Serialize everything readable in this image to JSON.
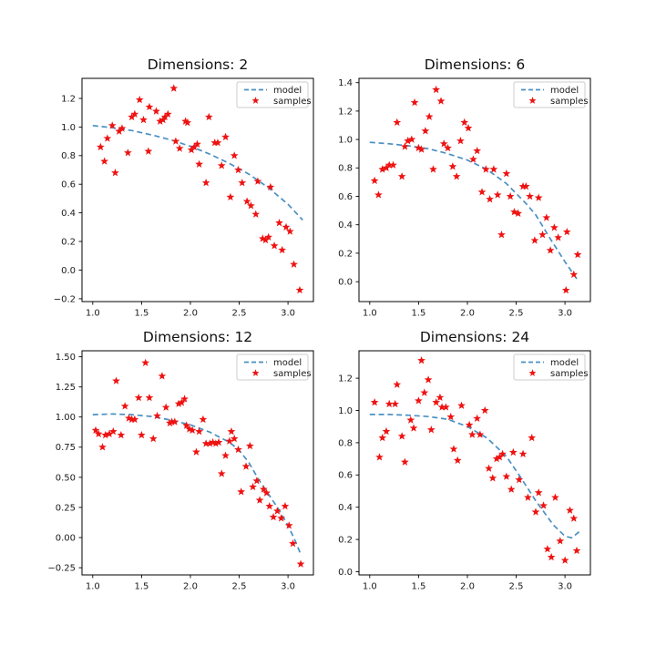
{
  "legend": {
    "model_label": "model",
    "samples_label": "samples"
  },
  "colors": {
    "model": "#4a90c2",
    "samples": "#ee1312",
    "axis": "#000000",
    "background": "#ffffff"
  },
  "chart_data": {
    "note": "see charts[] — four scatter+line subplots sharing x range [1, 3.14]"
  },
  "charts": [
    {
      "title": "Dimensions: 2",
      "type": "scatter+line",
      "xlim": [
        0.89,
        3.26
      ],
      "ylim": [
        -0.22,
        1.34
      ],
      "xticks": [
        1.0,
        1.5,
        2.0,
        2.5,
        3.0
      ],
      "xticklabels": [
        "1.0",
        "1.5",
        "2.0",
        "2.5",
        "3.0"
      ],
      "yticks": [
        -0.2,
        0.0,
        0.2,
        0.4,
        0.6,
        0.8,
        1.0,
        1.2
      ],
      "yticklabels": [
        "−0.2",
        "0.0",
        "0.2",
        "0.4",
        "0.6",
        "0.8",
        "1.0",
        "1.2"
      ],
      "model": [
        [
          1.0,
          1.01
        ],
        [
          1.2,
          0.995
        ],
        [
          1.4,
          0.975
        ],
        [
          1.6,
          0.945
        ],
        [
          1.8,
          0.91
        ],
        [
          2.0,
          0.865
        ],
        [
          2.2,
          0.81
        ],
        [
          2.4,
          0.745
        ],
        [
          2.6,
          0.67
        ],
        [
          2.8,
          0.575
        ],
        [
          3.0,
          0.46
        ],
        [
          3.15,
          0.35
        ]
      ],
      "samples": [
        [
          1.08,
          0.86
        ],
        [
          1.12,
          0.76
        ],
        [
          1.15,
          0.92
        ],
        [
          1.2,
          1.01
        ],
        [
          1.23,
          0.68
        ],
        [
          1.27,
          0.97
        ],
        [
          1.3,
          0.99
        ],
        [
          1.36,
          0.82
        ],
        [
          1.4,
          1.07
        ],
        [
          1.43,
          1.09
        ],
        [
          1.48,
          1.19
        ],
        [
          1.52,
          1.05
        ],
        [
          1.57,
          0.83
        ],
        [
          1.58,
          1.14
        ],
        [
          1.65,
          1.11
        ],
        [
          1.69,
          1.04
        ],
        [
          1.72,
          1.05
        ],
        [
          1.74,
          1.07
        ],
        [
          1.77,
          1.09
        ],
        [
          1.83,
          1.27
        ],
        [
          1.85,
          0.9
        ],
        [
          1.89,
          0.85
        ],
        [
          1.95,
          1.04
        ],
        [
          1.97,
          1.03
        ],
        [
          2.01,
          0.84
        ],
        [
          2.04,
          0.86
        ],
        [
          2.07,
          0.88
        ],
        [
          2.09,
          0.74
        ],
        [
          2.16,
          0.61
        ],
        [
          2.19,
          1.07
        ],
        [
          2.25,
          0.89
        ],
        [
          2.28,
          0.89
        ],
        [
          2.32,
          0.73
        ],
        [
          2.36,
          0.93
        ],
        [
          2.41,
          0.51
        ],
        [
          2.45,
          0.8
        ],
        [
          2.49,
          0.7
        ],
        [
          2.53,
          0.61
        ],
        [
          2.58,
          0.48
        ],
        [
          2.62,
          0.45
        ],
        [
          2.67,
          0.39
        ],
        [
          2.69,
          0.62
        ],
        [
          2.74,
          0.22
        ],
        [
          2.77,
          0.21
        ],
        [
          2.8,
          0.23
        ],
        [
          2.82,
          0.58
        ],
        [
          2.86,
          0.17
        ],
        [
          2.91,
          0.33
        ],
        [
          2.94,
          0.14
        ],
        [
          2.98,
          0.3
        ],
        [
          3.02,
          0.27
        ],
        [
          3.06,
          0.04
        ],
        [
          3.12,
          -0.14
        ]
      ]
    },
    {
      "title": "Dimensions: 6",
      "type": "scatter+line",
      "xlim": [
        0.89,
        3.26
      ],
      "ylim": [
        -0.14,
        1.43
      ],
      "xticks": [
        1.0,
        1.5,
        2.0,
        2.5,
        3.0
      ],
      "xticklabels": [
        "1.0",
        "1.5",
        "2.0",
        "2.5",
        "3.0"
      ],
      "yticks": [
        0.0,
        0.2,
        0.4,
        0.6,
        0.8,
        1.0,
        1.2,
        1.4
      ],
      "yticklabels": [
        "0.0",
        "0.2",
        "0.4",
        "0.6",
        "0.8",
        "1.0",
        "1.2",
        "1.4"
      ],
      "model": [
        [
          1.0,
          0.98
        ],
        [
          1.2,
          0.97
        ],
        [
          1.4,
          0.955
        ],
        [
          1.6,
          0.935
        ],
        [
          1.8,
          0.9
        ],
        [
          2.0,
          0.855
        ],
        [
          2.2,
          0.79
        ],
        [
          2.4,
          0.69
        ],
        [
          2.6,
          0.55
        ],
        [
          2.7,
          0.47
        ],
        [
          2.85,
          0.3
        ],
        [
          3.0,
          0.14
        ],
        [
          3.12,
          0.02
        ]
      ],
      "samples": [
        [
          1.05,
          0.71
        ],
        [
          1.09,
          0.61
        ],
        [
          1.13,
          0.79
        ],
        [
          1.17,
          0.8
        ],
        [
          1.2,
          0.82
        ],
        [
          1.24,
          0.82
        ],
        [
          1.28,
          1.12
        ],
        [
          1.33,
          0.74
        ],
        [
          1.36,
          0.95
        ],
        [
          1.39,
          0.99
        ],
        [
          1.43,
          1.0
        ],
        [
          1.46,
          1.26
        ],
        [
          1.5,
          0.94
        ],
        [
          1.53,
          0.93
        ],
        [
          1.57,
          1.06
        ],
        [
          1.61,
          1.16
        ],
        [
          1.65,
          0.79
        ],
        [
          1.68,
          1.35
        ],
        [
          1.73,
          1.27
        ],
        [
          1.76,
          0.97
        ],
        [
          1.8,
          0.94
        ],
        [
          1.85,
          0.81
        ],
        [
          1.89,
          0.74
        ],
        [
          1.93,
          0.99
        ],
        [
          1.97,
          1.12
        ],
        [
          2.01,
          1.08
        ],
        [
          2.06,
          0.86
        ],
        [
          2.1,
          0.92
        ],
        [
          2.15,
          0.63
        ],
        [
          2.19,
          0.79
        ],
        [
          2.23,
          0.58
        ],
        [
          2.27,
          0.79
        ],
        [
          2.31,
          0.61
        ],
        [
          2.35,
          0.33
        ],
        [
          2.4,
          0.76
        ],
        [
          2.44,
          0.6
        ],
        [
          2.48,
          0.49
        ],
        [
          2.52,
          0.48
        ],
        [
          2.57,
          0.67
        ],
        [
          2.6,
          0.67
        ],
        [
          2.64,
          0.6
        ],
        [
          2.69,
          0.29
        ],
        [
          2.73,
          0.59
        ],
        [
          2.77,
          0.33
        ],
        [
          2.81,
          0.45
        ],
        [
          2.85,
          0.22
        ],
        [
          2.89,
          0.38
        ],
        [
          2.93,
          0.31
        ],
        [
          3.01,
          -0.06
        ],
        [
          3.02,
          0.35
        ],
        [
          3.09,
          0.05
        ],
        [
          3.13,
          0.19
        ]
      ]
    },
    {
      "title": "Dimensions: 12",
      "type": "scatter+line",
      "xlim": [
        0.89,
        3.26
      ],
      "ylim": [
        -0.31,
        1.55
      ],
      "xticks": [
        1.0,
        1.5,
        2.0,
        2.5,
        3.0
      ],
      "xticklabels": [
        "1.0",
        "1.5",
        "2.0",
        "2.5",
        "3.0"
      ],
      "yticks": [
        -0.25,
        0.0,
        0.25,
        0.5,
        0.75,
        1.0,
        1.25,
        1.5
      ],
      "yticklabels": [
        "−0.25",
        "0.00",
        "0.25",
        "0.50",
        "0.75",
        "1.00",
        "1.25",
        "1.50"
      ],
      "model": [
        [
          1.0,
          1.02
        ],
        [
          1.2,
          1.025
        ],
        [
          1.4,
          1.02
        ],
        [
          1.6,
          1.005
        ],
        [
          1.8,
          0.975
        ],
        [
          2.0,
          0.935
        ],
        [
          2.2,
          0.875
        ],
        [
          2.4,
          0.79
        ],
        [
          2.5,
          0.725
        ],
        [
          2.6,
          0.62
        ],
        [
          2.7,
          0.48
        ],
        [
          2.8,
          0.36
        ],
        [
          2.9,
          0.24
        ],
        [
          3.0,
          0.1
        ],
        [
          3.07,
          -0.02
        ],
        [
          3.13,
          -0.14
        ]
      ],
      "samples": [
        [
          1.03,
          0.89
        ],
        [
          1.06,
          0.86
        ],
        [
          1.1,
          0.75
        ],
        [
          1.13,
          0.85
        ],
        [
          1.17,
          0.86
        ],
        [
          1.21,
          0.88
        ],
        [
          1.24,
          1.3
        ],
        [
          1.29,
          0.85
        ],
        [
          1.33,
          1.09
        ],
        [
          1.37,
          0.99
        ],
        [
          1.4,
          0.98
        ],
        [
          1.43,
          0.98
        ],
        [
          1.47,
          1.16
        ],
        [
          1.5,
          0.85
        ],
        [
          1.54,
          1.45
        ],
        [
          1.58,
          1.16
        ],
        [
          1.62,
          0.82
        ],
        [
          1.66,
          1.01
        ],
        [
          1.71,
          1.34
        ],
        [
          1.75,
          1.08
        ],
        [
          1.79,
          0.95
        ],
        [
          1.81,
          0.96
        ],
        [
          1.84,
          0.96
        ],
        [
          1.88,
          1.11
        ],
        [
          1.91,
          1.12
        ],
        [
          1.94,
          1.15
        ],
        [
          1.96,
          0.93
        ],
        [
          1.99,
          0.9
        ],
        [
          2.02,
          0.89
        ],
        [
          2.06,
          0.71
        ],
        [
          2.09,
          0.88
        ],
        [
          2.13,
          0.98
        ],
        [
          2.16,
          0.78
        ],
        [
          2.2,
          0.78
        ],
        [
          2.23,
          0.79
        ],
        [
          2.26,
          0.78
        ],
        [
          2.29,
          0.79
        ],
        [
          2.32,
          0.53
        ],
        [
          2.36,
          0.68
        ],
        [
          2.4,
          0.8
        ],
        [
          2.42,
          0.88
        ],
        [
          2.45,
          0.82
        ],
        [
          2.49,
          0.73
        ],
        [
          2.52,
          0.38
        ],
        [
          2.57,
          0.59
        ],
        [
          2.61,
          0.76
        ],
        [
          2.64,
          0.42
        ],
        [
          2.68,
          0.47
        ],
        [
          2.71,
          0.31
        ],
        [
          2.75,
          0.4
        ],
        [
          2.78,
          0.37
        ],
        [
          2.81,
          0.26
        ],
        [
          2.85,
          0.17
        ],
        [
          2.89,
          0.22
        ],
        [
          2.93,
          0.16
        ],
        [
          2.97,
          0.26
        ],
        [
          3.01,
          0.1
        ],
        [
          3.05,
          -0.05
        ],
        [
          3.13,
          -0.22
        ]
      ]
    },
    {
      "title": "Dimensions: 24",
      "type": "scatter+line",
      "xlim": [
        0.89,
        3.26
      ],
      "ylim": [
        -0.02,
        1.37
      ],
      "xticks": [
        1.0,
        1.5,
        2.0,
        2.5,
        3.0
      ],
      "xticklabels": [
        "1.0",
        "1.5",
        "2.0",
        "2.5",
        "3.0"
      ],
      "yticks": [
        0.0,
        0.2,
        0.4,
        0.6,
        0.8,
        1.0,
        1.2
      ],
      "yticklabels": [
        "0.0",
        "0.2",
        "0.4",
        "0.6",
        "0.8",
        "1.0",
        "1.2"
      ],
      "model": [
        [
          1.0,
          0.975
        ],
        [
          1.2,
          0.975
        ],
        [
          1.4,
          0.97
        ],
        [
          1.6,
          0.962
        ],
        [
          1.8,
          0.945
        ],
        [
          2.0,
          0.9
        ],
        [
          2.2,
          0.83
        ],
        [
          2.4,
          0.715
        ],
        [
          2.54,
          0.59
        ],
        [
          2.7,
          0.44
        ],
        [
          2.88,
          0.29
        ],
        [
          3.0,
          0.22
        ],
        [
          3.07,
          0.21
        ],
        [
          3.15,
          0.25
        ]
      ],
      "samples": [
        [
          1.05,
          1.05
        ],
        [
          1.1,
          0.71
        ],
        [
          1.13,
          0.83
        ],
        [
          1.17,
          0.87
        ],
        [
          1.2,
          1.04
        ],
        [
          1.26,
          1.04
        ],
        [
          1.28,
          1.16
        ],
        [
          1.33,
          0.84
        ],
        [
          1.36,
          0.68
        ],
        [
          1.42,
          0.94
        ],
        [
          1.45,
          0.89
        ],
        [
          1.5,
          1.06
        ],
        [
          1.53,
          1.31
        ],
        [
          1.56,
          1.11
        ],
        [
          1.6,
          1.19
        ],
        [
          1.63,
          0.88
        ],
        [
          1.68,
          1.05
        ],
        [
          1.72,
          1.08
        ],
        [
          1.74,
          1.02
        ],
        [
          1.78,
          1.02
        ],
        [
          1.83,
          0.96
        ],
        [
          1.86,
          0.76
        ],
        [
          1.9,
          0.69
        ],
        [
          1.94,
          1.03
        ],
        [
          2.02,
          0.91
        ],
        [
          2.05,
          0.85
        ],
        [
          2.1,
          0.95
        ],
        [
          2.13,
          0.85
        ],
        [
          2.18,
          1.0
        ],
        [
          2.22,
          0.64
        ],
        [
          2.26,
          0.58
        ],
        [
          2.3,
          0.7
        ],
        [
          2.33,
          0.71
        ],
        [
          2.36,
          0.73
        ],
        [
          2.4,
          0.59
        ],
        [
          2.45,
          0.51
        ],
        [
          2.47,
          0.74
        ],
        [
          2.53,
          0.57
        ],
        [
          2.57,
          0.73
        ],
        [
          2.62,
          0.46
        ],
        [
          2.66,
          0.83
        ],
        [
          2.7,
          0.37
        ],
        [
          2.73,
          0.49
        ],
        [
          2.78,
          0.41
        ],
        [
          2.82,
          0.14
        ],
        [
          2.86,
          0.09
        ],
        [
          2.9,
          0.46
        ],
        [
          2.95,
          0.19
        ],
        [
          3.0,
          0.07
        ],
        [
          3.05,
          0.38
        ],
        [
          3.09,
          0.33
        ],
        [
          3.12,
          0.13
        ]
      ]
    }
  ]
}
